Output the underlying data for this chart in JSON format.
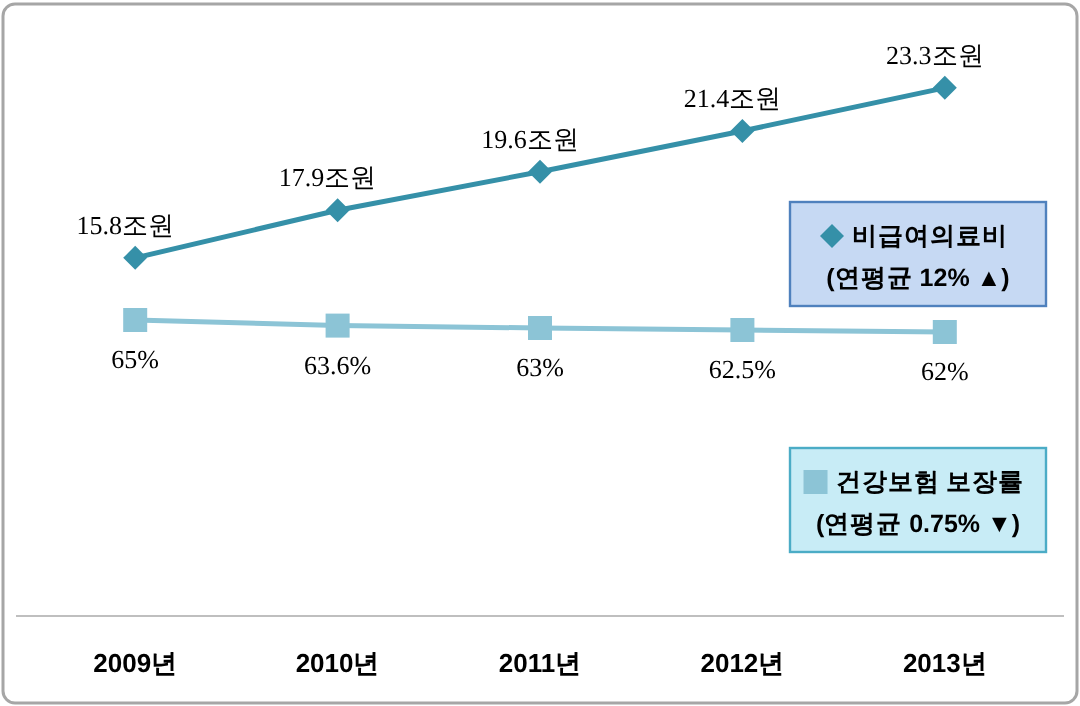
{
  "chart_data": {
    "type": "line",
    "categories": [
      "2009년",
      "2010년",
      "2011년",
      "2012년",
      "2013년"
    ],
    "series": [
      {
        "name": "비급여의료비",
        "color": "#3590a8",
        "marker": "diamond",
        "values": [
          15.8,
          17.9,
          19.6,
          21.4,
          23.3
        ],
        "value_labels": [
          "15.8조원",
          "17.9조원",
          "19.6조원",
          "21.4조원",
          "23.3조원"
        ]
      },
      {
        "name": "건강보험 보장률",
        "color": "#8cc4d6",
        "marker": "square",
        "axis": "y2",
        "values": [
          65,
          63.6,
          63,
          62.5,
          62
        ],
        "value_labels": [
          "65%",
          "63.6%",
          "63%",
          "62.5%",
          "62%"
        ]
      }
    ],
    "ylim": [
      0,
      27
    ],
    "y2lim": [
      -9,
      144
    ],
    "tick_labels": "x",
    "legend": "right",
    "annotations": [
      "(연평균 12% ▲)",
      "(연평균 0.75% ▼)"
    ]
  }
}
